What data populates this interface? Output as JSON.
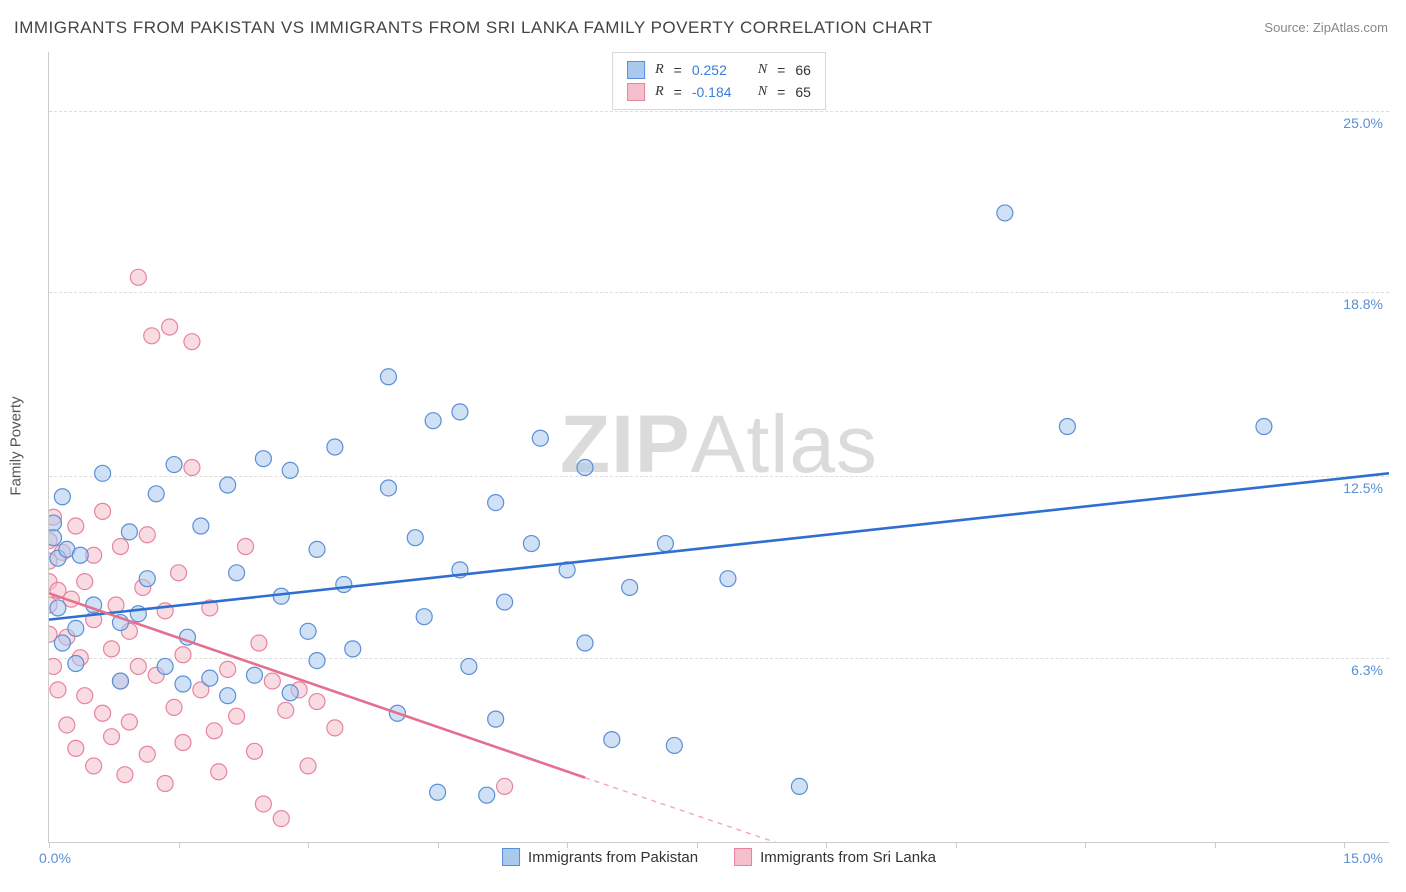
{
  "title": "IMMIGRANTS FROM PAKISTAN VS IMMIGRANTS FROM SRI LANKA FAMILY POVERTY CORRELATION CHART",
  "source_label": "Source:",
  "source_name": "ZipAtlas.com",
  "watermark_zip": "ZIP",
  "watermark_atlas": "Atlas",
  "ylabel": "Family Poverty",
  "chart": {
    "type": "scatter",
    "xlim": [
      0,
      15
    ],
    "ylim": [
      0,
      27
    ],
    "y_gridlines": [
      6.3,
      12.5,
      18.8,
      25.0
    ],
    "y_tick_labels": [
      "6.3%",
      "12.5%",
      "18.8%",
      "25.0%"
    ],
    "x_tick_labels": {
      "left": "0.0%",
      "right": "15.0%"
    },
    "x_tick_positions": [
      0,
      1.45,
      2.9,
      4.35,
      5.8,
      7.25,
      8.7,
      10.15,
      11.6,
      13.05,
      14.5
    ],
    "background_color": "#ffffff",
    "grid_color": "#dddddd",
    "axis_color": "#cccccc",
    "marker_radius": 8,
    "marker_opacity": 0.55,
    "trend_line_width": 2.6,
    "series": [
      {
        "name": "Immigrants from Pakistan",
        "color_fill": "#a9c9ef",
        "color_stroke": "#5a8fd6",
        "trend_color": "#2f6fd0",
        "r_value": "0.252",
        "n_value": "66",
        "trend": {
          "x1": 0,
          "y1": 7.6,
          "x2": 15,
          "y2": 12.6
        },
        "points": [
          [
            0.05,
            10.9
          ],
          [
            0.05,
            10.4
          ],
          [
            0.1,
            9.7
          ],
          [
            0.1,
            8.0
          ],
          [
            0.15,
            11.8
          ],
          [
            0.15,
            6.8
          ],
          [
            0.2,
            10.0
          ],
          [
            0.3,
            7.3
          ],
          [
            0.3,
            6.1
          ],
          [
            0.35,
            9.8
          ],
          [
            0.5,
            8.1
          ],
          [
            0.6,
            12.6
          ],
          [
            0.8,
            7.5
          ],
          [
            0.8,
            5.5
          ],
          [
            0.9,
            10.6
          ],
          [
            1.0,
            7.8
          ],
          [
            1.1,
            9.0
          ],
          [
            1.2,
            11.9
          ],
          [
            1.3,
            6.0
          ],
          [
            1.4,
            12.9
          ],
          [
            1.5,
            5.4
          ],
          [
            1.55,
            7.0
          ],
          [
            1.7,
            10.8
          ],
          [
            1.8,
            5.6
          ],
          [
            2.0,
            12.2
          ],
          [
            2.0,
            5.0
          ],
          [
            2.1,
            9.2
          ],
          [
            2.3,
            5.7
          ],
          [
            2.4,
            13.1
          ],
          [
            2.6,
            8.4
          ],
          [
            2.7,
            12.7
          ],
          [
            2.7,
            5.1
          ],
          [
            2.9,
            7.2
          ],
          [
            3.0,
            10.0
          ],
          [
            3.0,
            6.2
          ],
          [
            3.2,
            13.5
          ],
          [
            3.3,
            8.8
          ],
          [
            3.4,
            6.6
          ],
          [
            3.8,
            15.9
          ],
          [
            3.8,
            12.1
          ],
          [
            3.9,
            4.4
          ],
          [
            4.1,
            10.4
          ],
          [
            4.2,
            7.7
          ],
          [
            4.3,
            14.4
          ],
          [
            4.35,
            1.7
          ],
          [
            4.6,
            9.3
          ],
          [
            4.6,
            14.7
          ],
          [
            4.7,
            6.0
          ],
          [
            5.0,
            4.2
          ],
          [
            5.0,
            11.6
          ],
          [
            5.1,
            8.2
          ],
          [
            5.4,
            10.2
          ],
          [
            5.5,
            13.8
          ],
          [
            5.8,
            9.3
          ],
          [
            6.0,
            12.8
          ],
          [
            6.0,
            6.8
          ],
          [
            6.3,
            3.5
          ],
          [
            6.5,
            8.7
          ],
          [
            6.9,
            10.2
          ],
          [
            7.0,
            3.3
          ],
          [
            7.6,
            9.0
          ],
          [
            8.4,
            1.9
          ],
          [
            10.7,
            21.5
          ],
          [
            11.4,
            14.2
          ],
          [
            13.6,
            14.2
          ],
          [
            4.9,
            1.6
          ]
        ]
      },
      {
        "name": "Immigrants from Sri Lanka",
        "color_fill": "#f4c0cb",
        "color_stroke": "#e783a0",
        "trend_color": "#e56f8f",
        "r_value": "-0.184",
        "n_value": "65",
        "trend": {
          "x1": 0,
          "y1": 8.5,
          "x2": 6.0,
          "y2": 2.2
        },
        "trend_dashed": {
          "x1": 6.0,
          "y1": 2.2,
          "x2": 8.7,
          "y2": -0.6
        },
        "points": [
          [
            0.0,
            10.3
          ],
          [
            0.0,
            9.6
          ],
          [
            0.0,
            8.9
          ],
          [
            0.0,
            8.1
          ],
          [
            0.0,
            7.1
          ],
          [
            0.05,
            11.1
          ],
          [
            0.05,
            6.0
          ],
          [
            0.1,
            8.6
          ],
          [
            0.1,
            5.2
          ],
          [
            0.15,
            9.9
          ],
          [
            0.2,
            7.0
          ],
          [
            0.2,
            4.0
          ],
          [
            0.25,
            8.3
          ],
          [
            0.3,
            10.8
          ],
          [
            0.3,
            3.2
          ],
          [
            0.35,
            6.3
          ],
          [
            0.4,
            8.9
          ],
          [
            0.4,
            5.0
          ],
          [
            0.5,
            7.6
          ],
          [
            0.5,
            9.8
          ],
          [
            0.5,
            2.6
          ],
          [
            0.6,
            4.4
          ],
          [
            0.6,
            11.3
          ],
          [
            0.7,
            6.6
          ],
          [
            0.7,
            3.6
          ],
          [
            0.75,
            8.1
          ],
          [
            0.8,
            5.5
          ],
          [
            0.8,
            10.1
          ],
          [
            0.85,
            2.3
          ],
          [
            0.9,
            7.2
          ],
          [
            0.9,
            4.1
          ],
          [
            1.0,
            19.3
          ],
          [
            1.0,
            6.0
          ],
          [
            1.05,
            8.7
          ],
          [
            1.1,
            3.0
          ],
          [
            1.1,
            10.5
          ],
          [
            1.15,
            17.3
          ],
          [
            1.2,
            5.7
          ],
          [
            1.3,
            7.9
          ],
          [
            1.3,
            2.0
          ],
          [
            1.35,
            17.6
          ],
          [
            1.4,
            4.6
          ],
          [
            1.45,
            9.2
          ],
          [
            1.5,
            3.4
          ],
          [
            1.5,
            6.4
          ],
          [
            1.6,
            12.8
          ],
          [
            1.6,
            17.1
          ],
          [
            1.7,
            5.2
          ],
          [
            1.8,
            8.0
          ],
          [
            1.85,
            3.8
          ],
          [
            1.9,
            2.4
          ],
          [
            2.0,
            5.9
          ],
          [
            2.1,
            4.3
          ],
          [
            2.2,
            10.1
          ],
          [
            2.3,
            3.1
          ],
          [
            2.35,
            6.8
          ],
          [
            2.4,
            1.3
          ],
          [
            2.5,
            5.5
          ],
          [
            2.6,
            0.8
          ],
          [
            2.65,
            4.5
          ],
          [
            2.8,
            5.2
          ],
          [
            2.9,
            2.6
          ],
          [
            3.0,
            4.8
          ],
          [
            3.2,
            3.9
          ],
          [
            5.1,
            1.9
          ]
        ]
      }
    ]
  },
  "legend_top": {
    "r_label": "R",
    "n_label": "N",
    "eq": "="
  },
  "bottom_legend": [
    {
      "label": "Immigrants from Pakistan",
      "fill": "#a9c9ef",
      "stroke": "#5a8fd6"
    },
    {
      "label": "Immigrants from Sri Lanka",
      "fill": "#f4c0cb",
      "stroke": "#e783a0"
    }
  ]
}
